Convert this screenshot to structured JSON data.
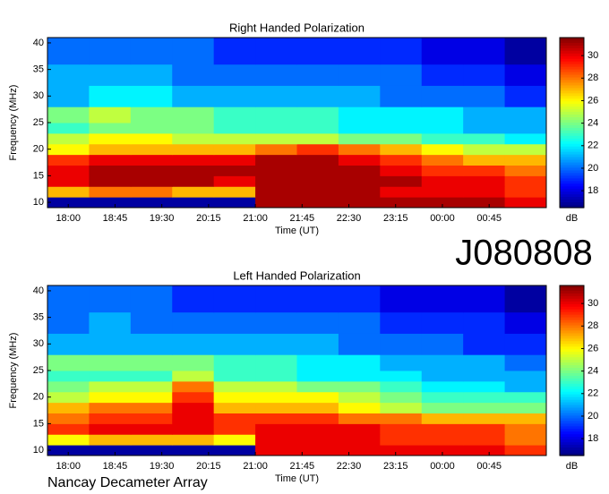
{
  "chart_data": [
    {
      "type": "heatmap",
      "title": "Right Handed Polarization",
      "xlabel": "Time (UT)",
      "ylabel": "Frequency (MHz)",
      "colormap": "jet",
      "x_edges": [
        1060,
        1100,
        1140,
        1180,
        1220,
        1260,
        1300,
        1340,
        1380,
        1420,
        1460,
        1500,
        1540
      ],
      "y_edges": [
        9,
        11,
        13,
        15,
        17,
        19,
        21,
        23,
        25,
        28,
        32,
        36,
        41
      ],
      "z": [
        [
          17,
          17,
          17,
          17,
          17,
          31,
          31,
          31,
          31,
          31,
          31,
          30
        ],
        [
          27,
          28,
          28,
          27,
          27,
          31,
          31,
          31,
          30,
          30,
          30,
          29
        ],
        [
          30,
          31,
          31,
          31,
          30,
          31,
          31,
          31,
          31,
          30,
          30,
          29
        ],
        [
          30,
          31,
          31,
          31,
          31,
          31,
          31,
          31,
          30,
          29,
          29,
          28
        ],
        [
          29,
          30,
          30,
          30,
          30,
          31,
          31,
          30,
          29,
          28,
          27,
          27
        ],
        [
          26,
          27,
          27,
          27,
          27,
          28,
          29,
          28,
          27,
          26,
          25,
          25
        ],
        [
          25,
          26,
          26,
          25,
          25,
          25,
          25,
          24,
          24,
          23,
          23,
          22
        ],
        [
          23,
          24,
          24,
          24,
          23,
          23,
          23,
          22,
          22,
          22,
          21,
          21
        ],
        [
          24,
          25,
          24,
          24,
          23,
          23,
          23,
          22,
          22,
          22,
          21,
          21
        ],
        [
          21,
          22,
          22,
          21,
          21,
          21,
          21,
          21,
          20,
          20,
          20,
          19
        ],
        [
          21,
          21,
          21,
          20,
          20,
          20,
          20,
          20,
          20,
          19,
          19,
          18
        ],
        [
          20,
          20,
          20,
          20,
          19,
          19,
          19,
          19,
          19,
          18,
          18,
          17
        ]
      ],
      "xlim": [
        1060,
        1540
      ],
      "ylim": [
        9,
        41
      ],
      "xticks": [
        {
          "value": 1080,
          "label": "18:00"
        },
        {
          "value": 1125,
          "label": "18:45"
        },
        {
          "value": 1170,
          "label": "19:30"
        },
        {
          "value": 1215,
          "label": "20:15"
        },
        {
          "value": 1260,
          "label": "21:00"
        },
        {
          "value": 1305,
          "label": "21:45"
        },
        {
          "value": 1350,
          "label": "22:30"
        },
        {
          "value": 1395,
          "label": "23:15"
        },
        {
          "value": 1440,
          "label": "00:00"
        },
        {
          "value": 1485,
          "label": "00:45"
        }
      ],
      "yticks": [
        10,
        15,
        20,
        25,
        30,
        35,
        40
      ],
      "colorbar": {
        "label": "dB",
        "clim": [
          16.5,
          31.6
        ],
        "ticks": [
          18,
          20,
          22,
          24,
          26,
          28,
          30
        ]
      }
    },
    {
      "type": "heatmap",
      "title": "Left Handed Polarization",
      "xlabel": "Time (UT)",
      "ylabel": "Frequency (MHz)",
      "colormap": "jet",
      "x_edges": [
        1060,
        1100,
        1140,
        1180,
        1220,
        1260,
        1300,
        1340,
        1380,
        1420,
        1460,
        1500,
        1540
      ],
      "y_edges": [
        9,
        11,
        13,
        15,
        17,
        19,
        21,
        23,
        25,
        28,
        32,
        36,
        41
      ],
      "z": [
        [
          17,
          17,
          17,
          17,
          17,
          30,
          30,
          30,
          30,
          30,
          30,
          29
        ],
        [
          26,
          27,
          27,
          27,
          26,
          30,
          30,
          30,
          29,
          29,
          29,
          28
        ],
        [
          29,
          30,
          30,
          30,
          29,
          30,
          30,
          30,
          29,
          29,
          29,
          28
        ],
        [
          28,
          29,
          29,
          30,
          29,
          29,
          29,
          28,
          28,
          27,
          27,
          27
        ],
        [
          27,
          28,
          28,
          30,
          27,
          27,
          27,
          26,
          25,
          24,
          24,
          24
        ],
        [
          25,
          26,
          26,
          29,
          26,
          26,
          26,
          25,
          24,
          23,
          23,
          23
        ],
        [
          24,
          25,
          25,
          28,
          25,
          25,
          24,
          24,
          23,
          22,
          22,
          21
        ],
        [
          23,
          23,
          23,
          25,
          23,
          23,
          22,
          22,
          22,
          21,
          21,
          21
        ],
        [
          24,
          24,
          24,
          24,
          23,
          23,
          22,
          22,
          21,
          21,
          21,
          20
        ],
        [
          21,
          21,
          21,
          21,
          21,
          21,
          21,
          20,
          20,
          20,
          19,
          19
        ],
        [
          20,
          21,
          20,
          20,
          20,
          20,
          20,
          20,
          19,
          19,
          19,
          18
        ],
        [
          20,
          20,
          20,
          19,
          19,
          19,
          19,
          19,
          18,
          18,
          18,
          17
        ]
      ],
      "xlim": [
        1060,
        1540
      ],
      "ylim": [
        9,
        41
      ],
      "xticks": [
        {
          "value": 1080,
          "label": "18:00"
        },
        {
          "value": 1125,
          "label": "18:45"
        },
        {
          "value": 1170,
          "label": "19:30"
        },
        {
          "value": 1215,
          "label": "20:15"
        },
        {
          "value": 1260,
          "label": "21:00"
        },
        {
          "value": 1305,
          "label": "21:45"
        },
        {
          "value": 1350,
          "label": "22:30"
        },
        {
          "value": 1395,
          "label": "23:15"
        },
        {
          "value": 1440,
          "label": "00:00"
        },
        {
          "value": 1485,
          "label": "00:45"
        }
      ],
      "yticks": [
        10,
        15,
        20,
        25,
        30,
        35,
        40
      ],
      "colorbar": {
        "label": "dB",
        "clim": [
          16.5,
          31.6
        ],
        "ticks": [
          18,
          20,
          22,
          24,
          26,
          28,
          30
        ]
      },
      "annotations": [
        "J080808",
        "Nancay Decameter Array"
      ]
    }
  ]
}
